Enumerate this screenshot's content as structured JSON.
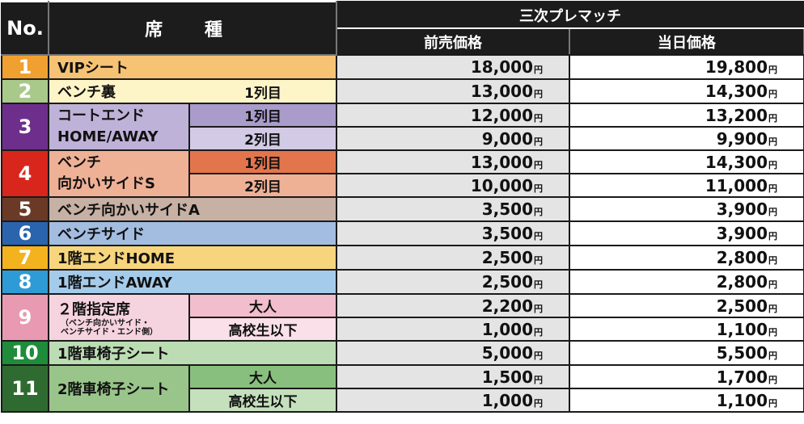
{
  "header": {
    "no": "No.",
    "seat": "席 種",
    "group": "三次プレマッチ",
    "advance": "前売価格",
    "sameday": "当日価格"
  },
  "yen": "円",
  "rows": [
    {
      "no": "1",
      "name": "VIPシート",
      "advance": "18,000",
      "sameday": "19,800"
    },
    {
      "no": "2",
      "name": "ベンチ裏",
      "sub": "1列目",
      "advance": "13,000",
      "sameday": "14,300"
    },
    {
      "no": "3",
      "name": "コートエンド",
      "name2": "HOME/AWAY",
      "subs": [
        {
          "sub": "1列目",
          "advance": "12,000",
          "sameday": "13,200"
        },
        {
          "sub": "2列目",
          "advance": "9,000",
          "sameday": "9,900"
        }
      ]
    },
    {
      "no": "4",
      "name": "ベンチ",
      "name2": "向かいサイドS",
      "subs": [
        {
          "sub": "1列目",
          "advance": "13,000",
          "sameday": "14,300"
        },
        {
          "sub": "2列目",
          "advance": "10,000",
          "sameday": "11,000"
        }
      ]
    },
    {
      "no": "5",
      "name": "ベンチ向かいサイドA",
      "advance": "3,500",
      "sameday": "3,900"
    },
    {
      "no": "6",
      "name": "ベンチサイド",
      "advance": "3,500",
      "sameday": "3,900"
    },
    {
      "no": "7",
      "name": "1階エンドHOME",
      "advance": "2,500",
      "sameday": "2,800"
    },
    {
      "no": "8",
      "name": "1階エンドAWAY",
      "advance": "2,500",
      "sameday": "2,800"
    },
    {
      "no": "9",
      "name": "２階指定席",
      "note1": "（ベンチ向かいサイド・",
      "note2": "ベンチサイド・エンド側）",
      "subs": [
        {
          "sub": "大人",
          "advance": "2,200",
          "sameday": "2,500"
        },
        {
          "sub": "高校生以下",
          "advance": "1,000",
          "sameday": "1,100"
        }
      ]
    },
    {
      "no": "10",
      "name": "1階車椅子シート",
      "advance": "5,000",
      "sameday": "5,500"
    },
    {
      "no": "11",
      "name": "2階車椅子シート",
      "subs": [
        {
          "sub": "大人",
          "advance": "1,500",
          "sameday": "1,700"
        },
        {
          "sub": "高校生以下",
          "advance": "1,000",
          "sameday": "1,100"
        }
      ]
    }
  ],
  "colors": {
    "r1_num": "#f0a030",
    "r1_bg": "#f6c274",
    "r2_num": "#a9c98a",
    "r2_bg": "#fdf4c8",
    "r3_num": "#6e2f8c",
    "r3_bg": "#bfb2d8",
    "r3_sub1": "#a99ccb",
    "r3_sub2": "#d3cae6",
    "r4_num": "#d8261d",
    "r4_bg": "#efb196",
    "r4_sub1": "#e3754c",
    "r4_sub2": "#efb196",
    "r5_num": "#6b3a27",
    "r5_bg": "#c7b0a4",
    "r6_num": "#2a64ad",
    "r6_bg": "#a2bde0",
    "r7_num": "#f3b31e",
    "r7_bg": "#f7d57c",
    "r8_num": "#2e9bd6",
    "r8_bg": "#a4cbea",
    "r9_num": "#e89ab2",
    "r9_bg": "#f6d4df",
    "r9_sub1": "#f2bdcc",
    "r9_sub2": "#fae0e8",
    "r10_num": "#1e8c3a",
    "r10_bg": "#bcdcb4",
    "r11_num": "#2f6b30",
    "r11_bg": "#99c58a",
    "r11_sub1": "#89bf7e",
    "r11_sub2": "#c4e0bc"
  }
}
